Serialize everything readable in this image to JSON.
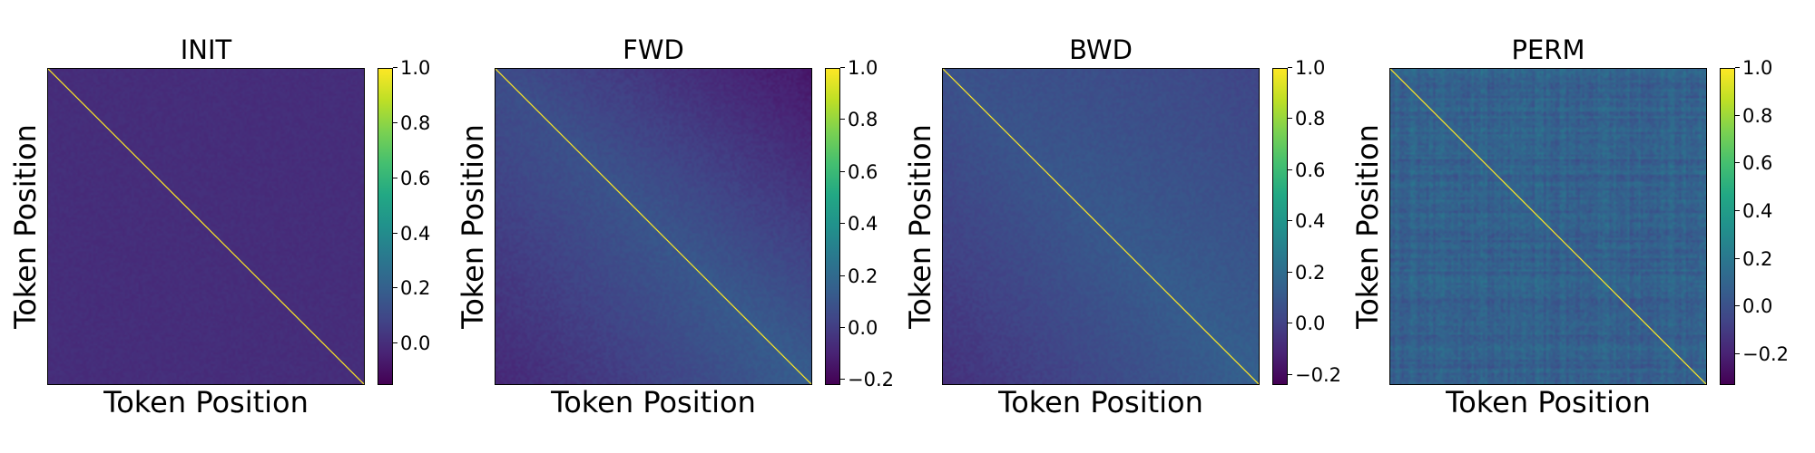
{
  "colormap": "viridis",
  "chart_data": [
    {
      "type": "heatmap",
      "title": "INIT",
      "xlabel": "Token Position",
      "ylabel": "Token Position",
      "base_value": 0.0,
      "value_range": [
        -0.15,
        1.0
      ],
      "diagonal_value": 1.0,
      "pattern": "uniform",
      "colorbar_ticks": [
        1.0,
        0.8,
        0.6,
        0.4,
        0.2,
        0.0
      ],
      "colorbar_tick_labels": [
        "1.0",
        "0.8",
        "0.6",
        "0.4",
        "0.2",
        "0.0"
      ]
    },
    {
      "type": "heatmap",
      "title": "FWD",
      "xlabel": "Token Position",
      "ylabel": "Token Position",
      "base_value": 0.05,
      "value_range": [
        -0.22,
        1.0
      ],
      "diagonal_value": 1.0,
      "pattern": "forward",
      "colorbar_ticks": [
        1.0,
        0.8,
        0.6,
        0.4,
        0.2,
        0.0,
        -0.2
      ],
      "colorbar_tick_labels": [
        "1.0",
        "0.8",
        "0.6",
        "0.4",
        "0.2",
        "0.0",
        "−0.2"
      ]
    },
    {
      "type": "heatmap",
      "title": "BWD",
      "xlabel": "Token Position",
      "ylabel": "Token Position",
      "base_value": 0.05,
      "value_range": [
        -0.24,
        1.0
      ],
      "diagonal_value": 1.0,
      "pattern": "backward",
      "colorbar_ticks": [
        1.0,
        0.8,
        0.6,
        0.4,
        0.2,
        0.0,
        -0.2
      ],
      "colorbar_tick_labels": [
        "1.0",
        "0.8",
        "0.6",
        "0.4",
        "0.2",
        "0.0",
        "−0.2"
      ]
    },
    {
      "type": "heatmap",
      "title": "PERM",
      "xlabel": "Token Position",
      "ylabel": "Token Position",
      "base_value": 0.08,
      "value_range": [
        -0.33,
        1.0
      ],
      "diagonal_value": 1.0,
      "pattern": "noisy",
      "colorbar_ticks": [
        1.0,
        0.8,
        0.6,
        0.4,
        0.2,
        0.0,
        -0.2
      ],
      "colorbar_tick_labels": [
        "1.0",
        "0.8",
        "0.6",
        "0.4",
        "0.2",
        "0.0",
        "−0.2"
      ]
    }
  ]
}
